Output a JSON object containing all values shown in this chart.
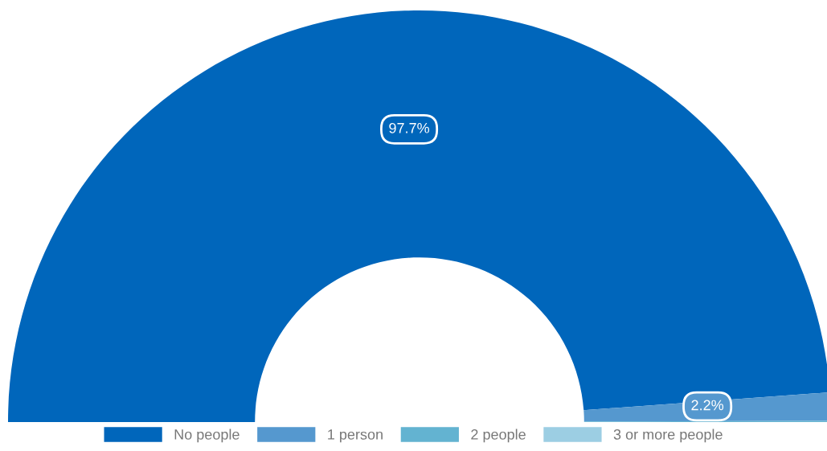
{
  "chart_data": {
    "type": "donut",
    "categories": [
      "No people",
      "1 person",
      "2 people",
      "3 or more people"
    ],
    "values": [
      97.7,
      2.2,
      0.1,
      0
    ],
    "colors": [
      "#0066bb",
      "#5598cf",
      "#63b3d1",
      "#9ccee3"
    ],
    "value_labels": [
      "97.7%",
      "2.2%",
      null,
      null
    ],
    "legend": "bottom"
  }
}
